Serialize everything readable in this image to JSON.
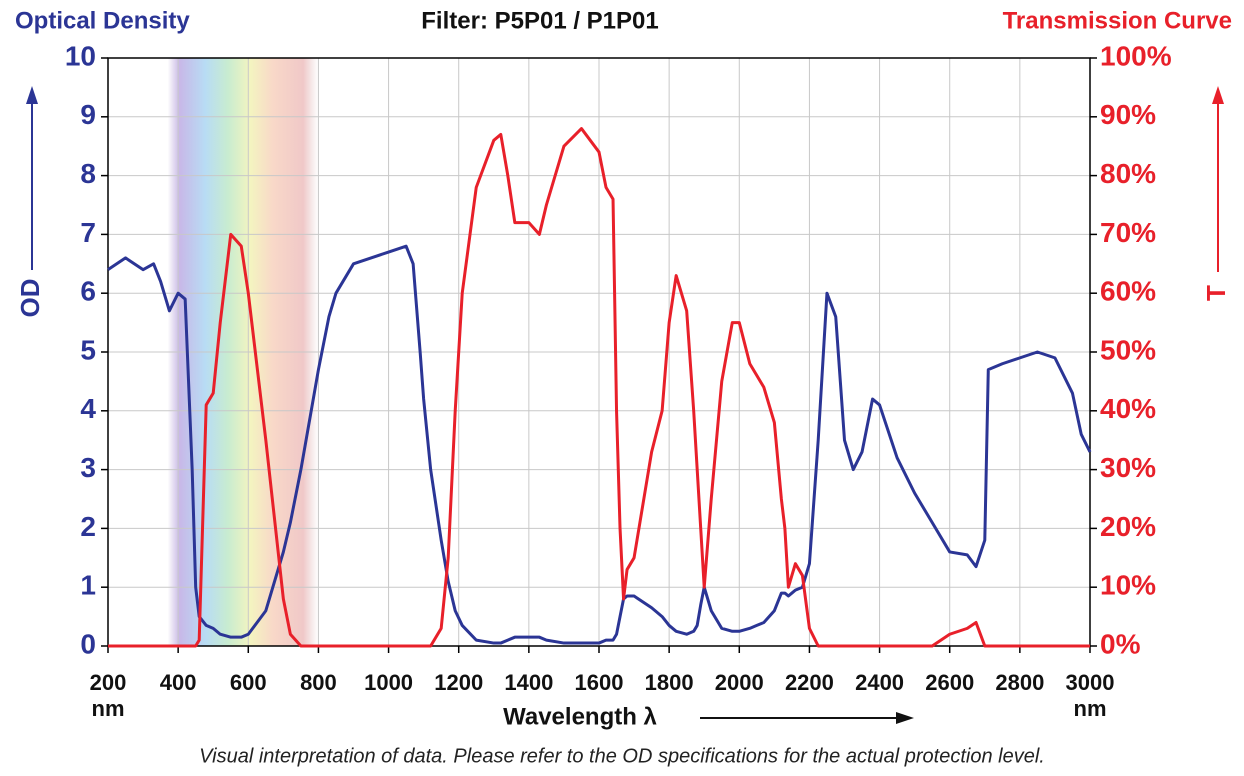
{
  "chart_data": {
    "type": "line",
    "title": "Filter: P5P01 / P1P01",
    "y_title": "Optical Density",
    "y2_title": "Transmission Curve",
    "y_label": "OD",
    "y2_label": "T",
    "x_label": "Wavelength λ",
    "x_unit": "nm",
    "footnote": "Visual interpretation of data. Please refer to the OD specifications for the actual protection level.",
    "highlight_range": [
      370,
      800
    ],
    "grid": true,
    "xlim": [
      200,
      3000
    ],
    "xticks": [
      200,
      400,
      600,
      800,
      1000,
      1200,
      1400,
      1600,
      1800,
      2000,
      2200,
      2400,
      2600,
      2800,
      3000
    ],
    "ylim": [
      0,
      10
    ],
    "yticks": [
      0,
      1,
      2,
      3,
      4,
      5,
      6,
      7,
      8,
      9,
      10
    ],
    "y2lim": [
      0,
      100
    ],
    "y2ticks": [
      {
        "value": 0,
        "label": "0%"
      },
      {
        "value": 10,
        "label": "10%"
      },
      {
        "value": 20,
        "label": "20%"
      },
      {
        "value": 30,
        "label": "30%"
      },
      {
        "value": 40,
        "label": "40%"
      },
      {
        "value": 50,
        "label": "50%"
      },
      {
        "value": 60,
        "label": "60%"
      },
      {
        "value": 70,
        "label": "70%"
      },
      {
        "value": 80,
        "label": "80%"
      },
      {
        "value": 90,
        "label": "90%"
      },
      {
        "value": 100,
        "label": "100%"
      }
    ],
    "x": [
      200,
      250,
      300,
      330,
      350,
      375,
      400,
      420,
      440,
      450,
      460,
      480,
      500,
      520,
      550,
      580,
      600,
      650,
      700,
      720,
      750,
      800,
      830,
      850,
      900,
      950,
      1000,
      1050,
      1070,
      1090,
      1100,
      1120,
      1150,
      1170,
      1190,
      1210,
      1250,
      1300,
      1320,
      1340,
      1360,
      1400,
      1430,
      1450,
      1500,
      1550,
      1600,
      1620,
      1640,
      1650,
      1660,
      1670,
      1680,
      1700,
      1750,
      1780,
      1800,
      1820,
      1850,
      1870,
      1880,
      1890,
      1900,
      1920,
      1950,
      1980,
      2000,
      2030,
      2050,
      2070,
      2100,
      2120,
      2130,
      2140,
      2150,
      2160,
      2180,
      2200,
      2225,
      2250,
      2275,
      2300,
      2325,
      2350,
      2380,
      2400,
      2450,
      2500,
      2550,
      2600,
      2650,
      2675,
      2700,
      2710,
      2750,
      2800,
      2850,
      2900,
      2950,
      2975,
      3000
    ],
    "series": [
      {
        "color": "#2b3595",
        "axis": "y",
        "values": [
          6.4,
          6.6,
          6.4,
          6.5,
          6.2,
          5.7,
          6.0,
          5.9,
          3.0,
          1.0,
          0.5,
          0.35,
          0.3,
          0.2,
          0.15,
          0.15,
          0.2,
          0.6,
          1.6,
          2.1,
          3.0,
          4.7,
          5.6,
          6.0,
          6.5,
          6.6,
          6.7,
          6.8,
          6.5,
          5.0,
          4.2,
          3.0,
          1.8,
          1.1,
          0.6,
          0.35,
          0.1,
          0.05,
          0.05,
          0.1,
          0.15,
          0.15,
          0.15,
          0.1,
          0.05,
          0.05,
          0.05,
          0.1,
          0.1,
          0.2,
          0.5,
          0.8,
          0.85,
          0.85,
          0.65,
          0.5,
          0.35,
          0.25,
          0.2,
          0.25,
          0.35,
          0.7,
          1.0,
          0.6,
          0.3,
          0.25,
          0.25,
          0.3,
          0.35,
          0.4,
          0.6,
          0.9,
          0.9,
          0.85,
          0.9,
          0.95,
          1.0,
          1.4,
          3.5,
          6.0,
          5.6,
          3.5,
          3.0,
          3.3,
          4.2,
          4.1,
          3.2,
          2.6,
          2.1,
          1.6,
          1.55,
          1.35,
          1.8,
          4.7,
          4.8,
          4.9,
          5.0,
          4.9,
          4.3,
          3.6,
          3.3
        ]
      },
      {
        "color": "#e8202a",
        "axis": "y2",
        "values": [
          0,
          0,
          0,
          0,
          0,
          0,
          0,
          0,
          0,
          0,
          1,
          41,
          43,
          55,
          70,
          68,
          60,
          35,
          8,
          2,
          0,
          0,
          0,
          0,
          0,
          0,
          0,
          0,
          0,
          0,
          0,
          0,
          3,
          15,
          40,
          60,
          78,
          86,
          87,
          80,
          72,
          72,
          70,
          75,
          85,
          88,
          84,
          78,
          76,
          40,
          20,
          8,
          13,
          15,
          33,
          40,
          55,
          63,
          57,
          40,
          30,
          20,
          10,
          25,
          45,
          55,
          55,
          48,
          46,
          44,
          38,
          25,
          20,
          10,
          12,
          14,
          12,
          3,
          0,
          0,
          0,
          0,
          0,
          0,
          0,
          0,
          0,
          0,
          0,
          2,
          3,
          4,
          0,
          0,
          0,
          0,
          0,
          0,
          0,
          0,
          0
        ]
      }
    ]
  }
}
